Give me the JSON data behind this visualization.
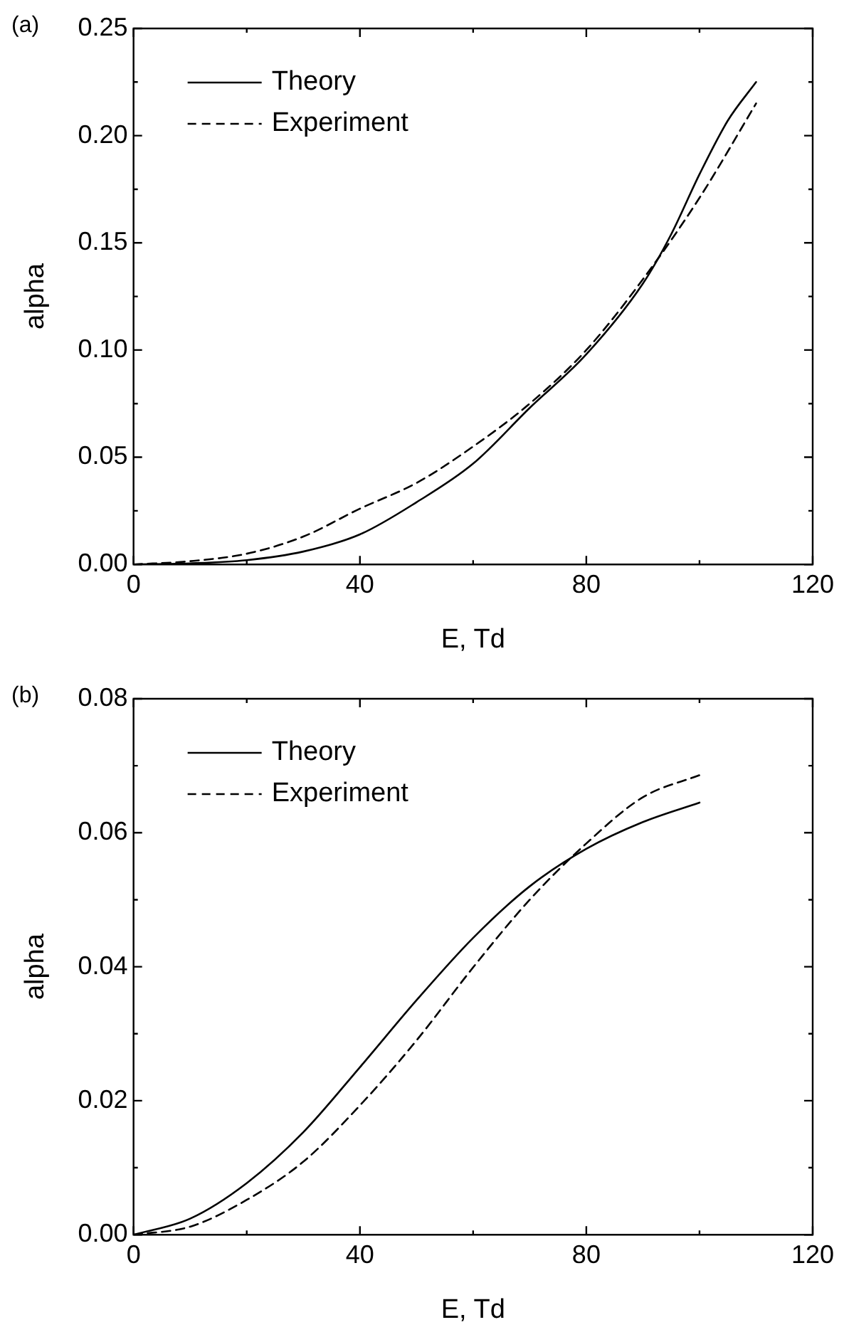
{
  "chart_data": [
    {
      "type": "line",
      "annotations": [
        "(a)"
      ],
      "xlabel": "E, Td",
      "ylabel": "alpha",
      "xlim": [
        0,
        120
      ],
      "xticks": [
        0,
        40,
        80,
        120
      ],
      "ylim": [
        0,
        0.25
      ],
      "yticks": [
        {
          "value": 0,
          "label": "0.00"
        },
        {
          "value": 0.05,
          "label": "0.05"
        },
        {
          "value": 0.1,
          "label": "0.10"
        },
        {
          "value": 0.15,
          "label": "0.15"
        },
        {
          "value": 0.2,
          "label": "0.20"
        },
        {
          "value": 0.25,
          "label": "0.25"
        }
      ],
      "legend": "top left",
      "grid": false,
      "marker": "none",
      "series": [
        {
          "name": "Theory",
          "color": "#000000",
          "line_style": "solid",
          "x": [
            0,
            10,
            20,
            30,
            40,
            50,
            60,
            70,
            80,
            90,
            95,
            100,
            105,
            110
          ],
          "values": [
            0,
            0.0005,
            0.002,
            0.006,
            0.014,
            0.029,
            0.047,
            0.073,
            0.098,
            0.131,
            0.154,
            0.182,
            0.207,
            0.225
          ]
        },
        {
          "name": "Experiment",
          "color": "#000000",
          "line_style": "dashed",
          "x": [
            0,
            10,
            20,
            30,
            40,
            50,
            60,
            70,
            80,
            90,
            100,
            110
          ],
          "values": [
            0,
            0.0015,
            0.005,
            0.013,
            0.026,
            0.038,
            0.055,
            0.075,
            0.1,
            0.133,
            0.171,
            0.215
          ]
        }
      ]
    },
    {
      "type": "line",
      "annotations": [
        "(b)"
      ],
      "xlabel": "E, Td",
      "ylabel": "alpha",
      "xlim": [
        0,
        120
      ],
      "xticks": [
        0,
        40,
        80,
        120
      ],
      "ylim": [
        0,
        0.08
      ],
      "yticks": [
        {
          "value": 0,
          "label": "0.00"
        },
        {
          "value": 0.02,
          "label": "0.02"
        },
        {
          "value": 0.04,
          "label": "0.04"
        },
        {
          "value": 0.06,
          "label": "0.06"
        },
        {
          "value": 0.08,
          "label": "0.08"
        }
      ],
      "legend": "top left",
      "grid": false,
      "marker": "none",
      "series": [
        {
          "name": "Theory",
          "color": "#000000",
          "line_style": "solid",
          "x": [
            0,
            10,
            20,
            30,
            40,
            50,
            60,
            70,
            80,
            90,
            100
          ],
          "values": [
            0,
            0.0024,
            0.0077,
            0.0153,
            0.025,
            0.035,
            0.0443,
            0.052,
            0.0576,
            0.0616,
            0.0645
          ]
        },
        {
          "name": "Experiment",
          "color": "#000000",
          "line_style": "dashed",
          "x": [
            0,
            10,
            20,
            30,
            40,
            50,
            60,
            70,
            80,
            90,
            100
          ],
          "values": [
            0,
            0.0012,
            0.0052,
            0.0109,
            0.0193,
            0.029,
            0.0399,
            0.05,
            0.0584,
            0.0653,
            0.0686
          ]
        }
      ]
    }
  ]
}
